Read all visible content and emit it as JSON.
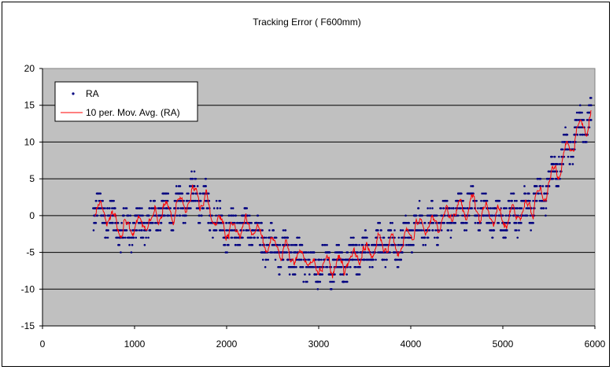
{
  "chart_data": {
    "type": "scatter",
    "title": "Tracking Error ( F600mm)",
    "xlabel": "",
    "ylabel": "",
    "xlim": [
      0,
      6000
    ],
    "ylim": [
      -15,
      20
    ],
    "xticks": [
      0,
      1000,
      2000,
      3000,
      4000,
      5000,
      6000
    ],
    "yticks": [
      -15,
      -10,
      -5,
      0,
      5,
      10,
      15,
      20
    ],
    "grid": "horizontal",
    "legend_position": "top-left",
    "plot_background": "#c0c0c0",
    "series": [
      {
        "name": "RA",
        "kind": "markers",
        "color": "#000080",
        "x_range": [
          550,
          5960
        ],
        "trend_x": [
          550,
          650,
          750,
          850,
          950,
          1050,
          1150,
          1250,
          1350,
          1450,
          1550,
          1650,
          1750,
          1850,
          1950,
          2050,
          2150,
          2250,
          2350,
          2450,
          2550,
          2650,
          2750,
          2850,
          2950,
          3050,
          3150,
          3250,
          3350,
          3450,
          3550,
          3650,
          3750,
          3850,
          3950,
          4050,
          4150,
          4250,
          4350,
          4450,
          4550,
          4650,
          4750,
          4850,
          4950,
          5050,
          5150,
          5250,
          5350,
          5450,
          5550,
          5650,
          5750,
          5850,
          5950
        ],
        "trend_y": [
          0.5,
          0.5,
          -0.5,
          -2,
          -1.5,
          -1.5,
          -1,
          0.5,
          0.5,
          1,
          1.5,
          3,
          2,
          0,
          -1.5,
          -2,
          -1.5,
          -1.5,
          -3,
          -4,
          -4.5,
          -5,
          -5.5,
          -6,
          -7,
          -6.5,
          -6.5,
          -7,
          -6,
          -5,
          -5,
          -4,
          -4,
          -4,
          -3,
          -1.5,
          -1,
          -1,
          -0.5,
          0,
          0.5,
          2,
          1,
          0,
          -0.5,
          0,
          0.5,
          1,
          2,
          3,
          6,
          8,
          10,
          12.5,
          13
        ]
      },
      {
        "name": "10 per. Mov. Avg. (RA)",
        "kind": "line",
        "color": "#ff0000"
      }
    ]
  }
}
